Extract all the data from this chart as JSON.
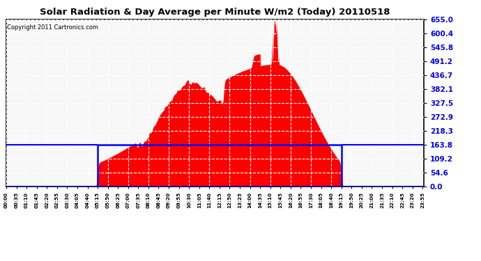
{
  "title": "Solar Radiation & Day Average per Minute W/m2 (Today) 20110518",
  "copyright": "Copyright 2011 Cartronics.com",
  "yticks": [
    0.0,
    54.6,
    109.2,
    163.8,
    218.3,
    272.9,
    327.5,
    382.1,
    436.7,
    491.2,
    545.8,
    600.4,
    655.0
  ],
  "ymax": 655.0,
  "ymin": 0.0,
  "bg_color": "#ffffff",
  "fill_color": "#ff0000",
  "avg_box_color": "#0000ff",
  "avg_value": 163.8,
  "sunrise_min": 315,
  "sunset_min": 1155,
  "total_minutes": 1440,
  "peak_min": 930,
  "peak_val": 655.0,
  "title_fontsize": 9.5,
  "copyright_fontsize": 6
}
